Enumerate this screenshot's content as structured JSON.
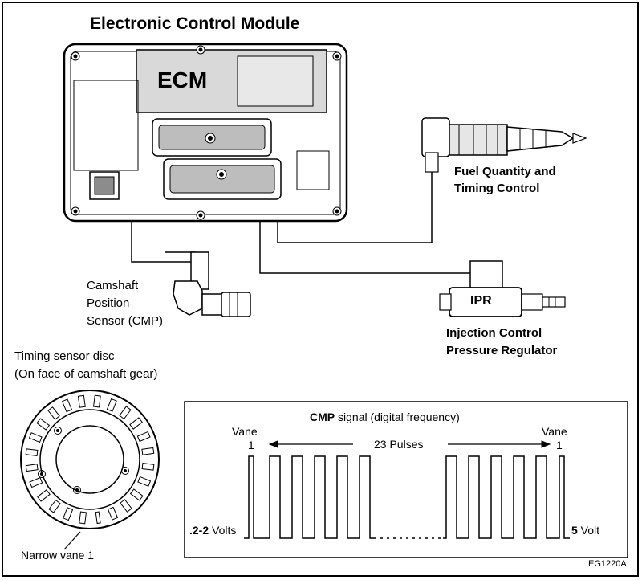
{
  "title": "Electronic Control Module",
  "ecm_label": "ECM",
  "injector": {
    "line1": "Fuel Quantity and",
    "line2": "Timing Control"
  },
  "ipr": {
    "badge": "IPR",
    "line1": "Injection Control",
    "line2": "Pressure Regulator"
  },
  "cmp_sensor": {
    "line1": "Camshaft",
    "line2": "Position",
    "line3": "Sensor (CMP)"
  },
  "disc": {
    "line1": "Timing sensor disc",
    "line2": "(On face of camshaft gear)",
    "narrow_vane": "Narrow vane 1"
  },
  "signal": {
    "title_bold": "CMP",
    "title_rest": " signal  (digital frequency)",
    "vane_left": "Vane",
    "vane_left_num": "1",
    "vane_right": "Vane",
    "vane_right_num": "1",
    "pulses": "23 Pulses",
    "low_bold": ".2-2",
    "low_rest": " Volts",
    "high_bold": "5",
    "high_rest": " Volt"
  },
  "figure_code": "EG1220A"
}
